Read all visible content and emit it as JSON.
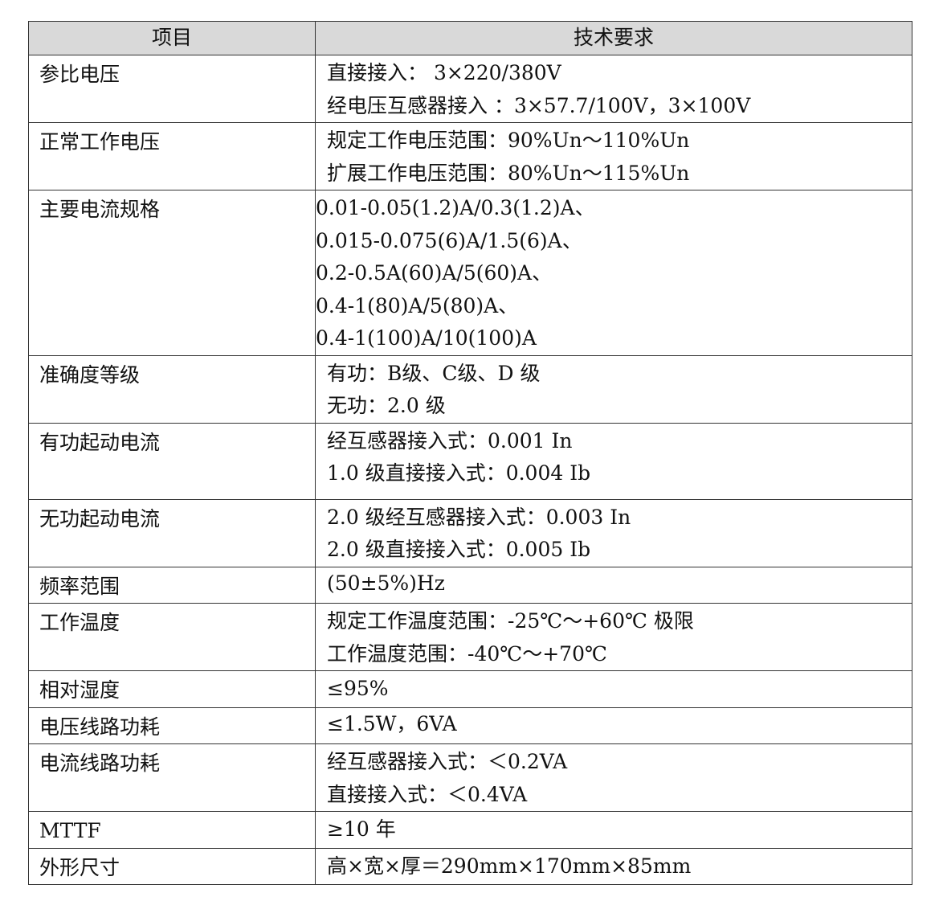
{
  "header": {
    "col1": "项目",
    "col2": "技术要求"
  },
  "rows": [
    {
      "item": "参比电压",
      "lines": [
        "直接接入：  3×220/380V",
        "经电压互感器接入 ：3×57.7/100V，3×100V"
      ]
    },
    {
      "item": "正常工作电压",
      "lines": [
        "规定工作电压范围：90%Un～110%Un",
        "扩展工作电压范围：80%Un～115%Un"
      ]
    },
    {
      "item": "主要电流规格",
      "lines": [
        "0.01-0.05(1.2)A/0.3(1.2)A、",
        "0.015-0.075(6)A/1.5(6)A、",
        "0.2-0.5A(60)A/5(60)A、",
        "0.4-1(80)A/5(80)A、",
        "0.4-1(100)A/10(100)A"
      ]
    },
    {
      "item": "准确度等级",
      "lines": [
        "有功：B级、C级、D 级",
        "无功：2.0 级"
      ]
    },
    {
      "item": "有功起动电流",
      "lines": [
        "经互感器接入式：0.001 In",
        "1.0 级直接接入式：0.004 Ib"
      ]
    },
    {
      "item": "无功起动电流",
      "lines": [
        "2.0 级经互感器接入式：0.003 In",
        "2.0 级直接接入式：0.005 Ib"
      ]
    },
    {
      "item": "频率范围",
      "lines": [
        "(50±5%)Hz"
      ]
    },
    {
      "item": "工作温度",
      "lines": [
        "规定工作温度范围：-25℃～+60℃ 极限",
        "工作温度范围：-40℃～+70℃"
      ]
    },
    {
      "item": "相对湿度",
      "lines": [
        "≤95%"
      ]
    },
    {
      "item": "电压线路功耗",
      "lines": [
        "≤1.5W，6VA"
      ]
    },
    {
      "item": "电流线路功耗",
      "lines": [
        "经互感器接入式：＜0.2VA",
        "直接接入式：＜0.4VA"
      ]
    },
    {
      "item": "MTTF",
      "lines": [
        "≥10 年"
      ]
    },
    {
      "item": "外形尺寸",
      "lines": [
        "高×宽×厚＝290mm×170mm×85mm"
      ]
    }
  ]
}
